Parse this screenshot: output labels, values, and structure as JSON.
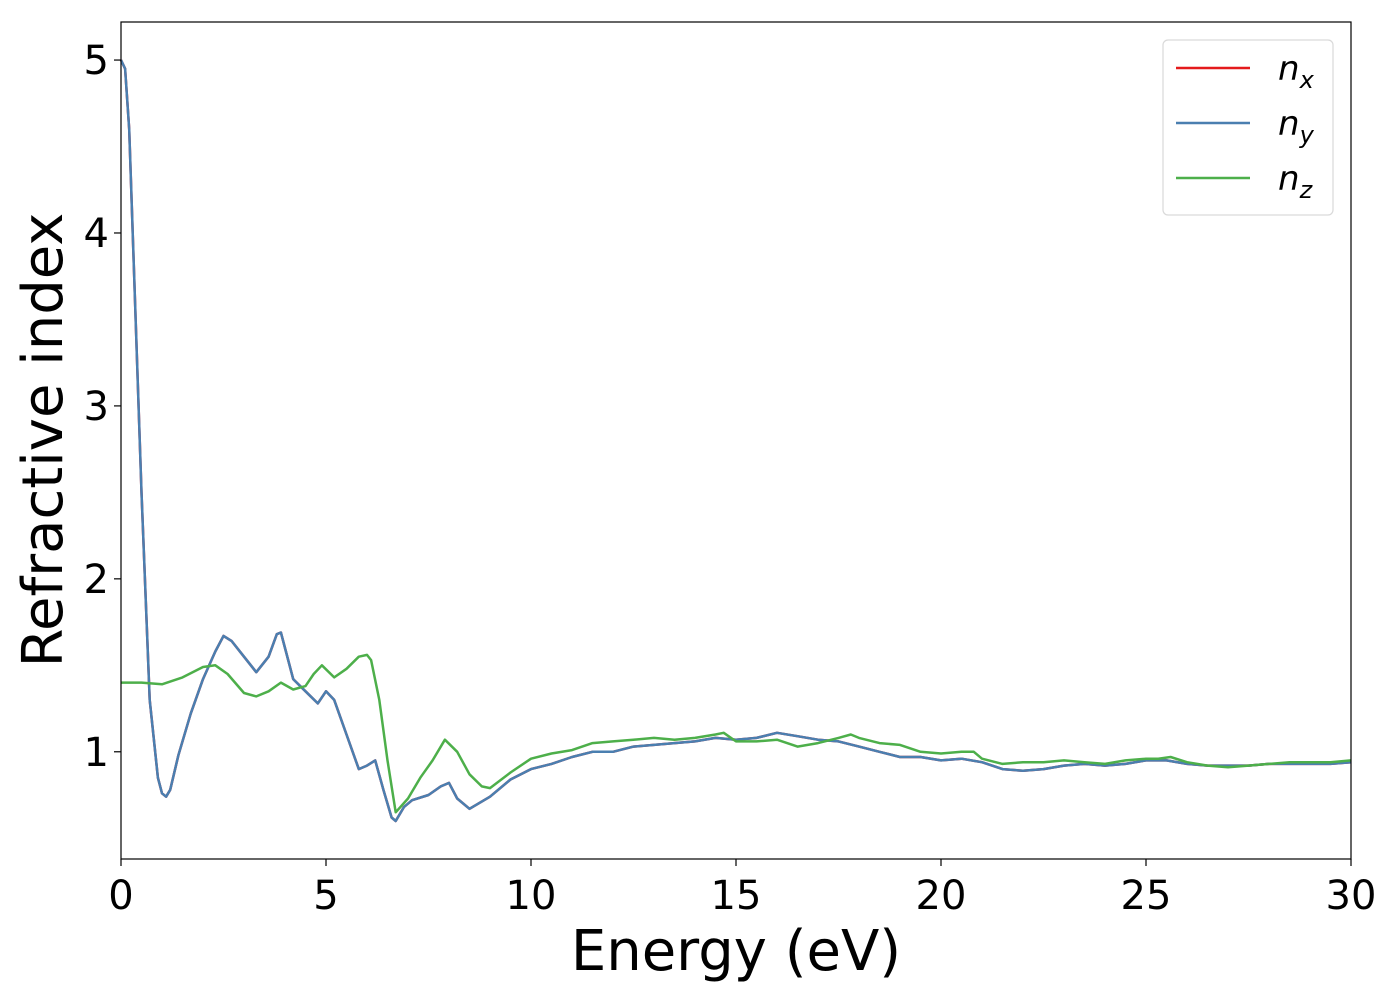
{
  "chart_data": {
    "type": "line",
    "xlabel": "Energy (eV)",
    "ylabel": "Refractive index",
    "xlim": [
      0,
      30
    ],
    "ylim": [
      0.38,
      5.22
    ],
    "xticks": [
      0,
      5,
      10,
      15,
      20,
      25,
      30
    ],
    "yticks": [
      1,
      2,
      3,
      4,
      5
    ],
    "grid": false,
    "legend_position": "top-right",
    "series": [
      {
        "name": "n",
        "subscript": "x",
        "color": "#e41a1c",
        "x": [
          0,
          0.1,
          0.2,
          0.3,
          0.5,
          0.7,
          0.9,
          1.0,
          1.1,
          1.2,
          1.4,
          1.7,
          2.0,
          2.3,
          2.5,
          2.7,
          3.0,
          3.3,
          3.6,
          3.8,
          3.9,
          4.0,
          4.2,
          4.5,
          4.8,
          5.0,
          5.2,
          5.5,
          5.8,
          6.0,
          6.2,
          6.4,
          6.6,
          6.7,
          6.9,
          7.1,
          7.5,
          7.8,
          8.0,
          8.2,
          8.5,
          9.0,
          9.5,
          10.0,
          10.5,
          11.0,
          11.5,
          12.0,
          12.5,
          13.0,
          13.5,
          14.0,
          14.5,
          15.0,
          15.5,
          16.0,
          16.5,
          17.0,
          17.5,
          18.0,
          18.5,
          19.0,
          19.5,
          20.0,
          20.5,
          21.0,
          21.5,
          22.0,
          22.5,
          23.0,
          23.5,
          24.0,
          24.5,
          25.0,
          25.5,
          26.0,
          26.5,
          27.0,
          27.5,
          28.0,
          28.5,
          29.0,
          29.5,
          30.0
        ],
        "y": [
          5.0,
          4.95,
          4.6,
          3.9,
          2.5,
          1.3,
          0.85,
          0.76,
          0.74,
          0.78,
          0.98,
          1.22,
          1.42,
          1.58,
          1.67,
          1.64,
          1.55,
          1.46,
          1.55,
          1.68,
          1.69,
          1.6,
          1.42,
          1.35,
          1.28,
          1.35,
          1.3,
          1.1,
          0.9,
          0.92,
          0.95,
          0.78,
          0.62,
          0.6,
          0.68,
          0.72,
          0.75,
          0.8,
          0.82,
          0.73,
          0.67,
          0.74,
          0.84,
          0.9,
          0.93,
          0.97,
          1.0,
          1.0,
          1.03,
          1.04,
          1.05,
          1.06,
          1.08,
          1.07,
          1.08,
          1.11,
          1.09,
          1.07,
          1.06,
          1.03,
          1.0,
          0.97,
          0.97,
          0.95,
          0.96,
          0.94,
          0.9,
          0.89,
          0.9,
          0.92,
          0.93,
          0.92,
          0.93,
          0.95,
          0.95,
          0.93,
          0.92,
          0.92,
          0.92,
          0.93,
          0.93,
          0.93,
          0.93,
          0.94
        ]
      },
      {
        "name": "n",
        "subscript": "y",
        "color": "#4a7fb0",
        "x": [
          0,
          0.1,
          0.2,
          0.3,
          0.5,
          0.7,
          0.9,
          1.0,
          1.1,
          1.2,
          1.4,
          1.7,
          2.0,
          2.3,
          2.5,
          2.7,
          3.0,
          3.3,
          3.6,
          3.8,
          3.9,
          4.0,
          4.2,
          4.5,
          4.8,
          5.0,
          5.2,
          5.5,
          5.8,
          6.0,
          6.2,
          6.4,
          6.6,
          6.7,
          6.9,
          7.1,
          7.5,
          7.8,
          8.0,
          8.2,
          8.5,
          9.0,
          9.5,
          10.0,
          10.5,
          11.0,
          11.5,
          12.0,
          12.5,
          13.0,
          13.5,
          14.0,
          14.5,
          15.0,
          15.5,
          16.0,
          16.5,
          17.0,
          17.5,
          18.0,
          18.5,
          19.0,
          19.5,
          20.0,
          20.5,
          21.0,
          21.5,
          22.0,
          22.5,
          23.0,
          23.5,
          24.0,
          24.5,
          25.0,
          25.5,
          26.0,
          26.5,
          27.0,
          27.5,
          28.0,
          28.5,
          29.0,
          29.5,
          30.0
        ],
        "y": [
          5.0,
          4.95,
          4.6,
          3.9,
          2.5,
          1.3,
          0.85,
          0.76,
          0.74,
          0.78,
          0.98,
          1.22,
          1.42,
          1.58,
          1.67,
          1.64,
          1.55,
          1.46,
          1.55,
          1.68,
          1.69,
          1.6,
          1.42,
          1.35,
          1.28,
          1.35,
          1.3,
          1.1,
          0.9,
          0.92,
          0.95,
          0.78,
          0.62,
          0.6,
          0.68,
          0.72,
          0.75,
          0.8,
          0.82,
          0.73,
          0.67,
          0.74,
          0.84,
          0.9,
          0.93,
          0.97,
          1.0,
          1.0,
          1.03,
          1.04,
          1.05,
          1.06,
          1.08,
          1.07,
          1.08,
          1.11,
          1.09,
          1.07,
          1.06,
          1.03,
          1.0,
          0.97,
          0.97,
          0.95,
          0.96,
          0.94,
          0.9,
          0.89,
          0.9,
          0.92,
          0.93,
          0.92,
          0.93,
          0.95,
          0.95,
          0.93,
          0.92,
          0.92,
          0.92,
          0.93,
          0.93,
          0.93,
          0.93,
          0.94
        ]
      },
      {
        "name": "n",
        "subscript": "z",
        "color": "#4daf4a",
        "x": [
          0,
          0.5,
          1.0,
          1.5,
          2.0,
          2.3,
          2.6,
          3.0,
          3.3,
          3.6,
          3.9,
          4.2,
          4.5,
          4.7,
          4.9,
          5.2,
          5.5,
          5.8,
          6.0,
          6.1,
          6.3,
          6.5,
          6.7,
          7.0,
          7.3,
          7.6,
          7.9,
          8.2,
          8.5,
          8.8,
          9.0,
          9.5,
          10.0,
          10.5,
          11.0,
          11.5,
          12.0,
          12.5,
          13.0,
          13.5,
          14.0,
          14.5,
          14.7,
          15.0,
          15.5,
          16.0,
          16.5,
          17.0,
          17.5,
          17.8,
          18.0,
          18.5,
          19.0,
          19.5,
          20.0,
          20.5,
          20.8,
          21.0,
          21.5,
          22.0,
          22.5,
          23.0,
          23.5,
          24.0,
          24.5,
          25.0,
          25.3,
          25.6,
          26.0,
          26.5,
          27.0,
          27.5,
          28.0,
          28.5,
          29.0,
          29.5,
          30.0
        ],
        "y": [
          1.4,
          1.4,
          1.39,
          1.43,
          1.49,
          1.5,
          1.45,
          1.34,
          1.32,
          1.35,
          1.4,
          1.36,
          1.38,
          1.45,
          1.5,
          1.43,
          1.48,
          1.55,
          1.56,
          1.53,
          1.3,
          0.95,
          0.65,
          0.73,
          0.85,
          0.95,
          1.07,
          1.0,
          0.87,
          0.8,
          0.79,
          0.88,
          0.96,
          0.99,
          1.01,
          1.05,
          1.06,
          1.07,
          1.08,
          1.07,
          1.08,
          1.1,
          1.11,
          1.06,
          1.06,
          1.07,
          1.03,
          1.05,
          1.08,
          1.1,
          1.08,
          1.05,
          1.04,
          1.0,
          0.99,
          1.0,
          1.0,
          0.96,
          0.93,
          0.94,
          0.94,
          0.95,
          0.94,
          0.93,
          0.95,
          0.96,
          0.96,
          0.97,
          0.94,
          0.92,
          0.91,
          0.92,
          0.93,
          0.94,
          0.94,
          0.94,
          0.95
        ]
      }
    ]
  }
}
